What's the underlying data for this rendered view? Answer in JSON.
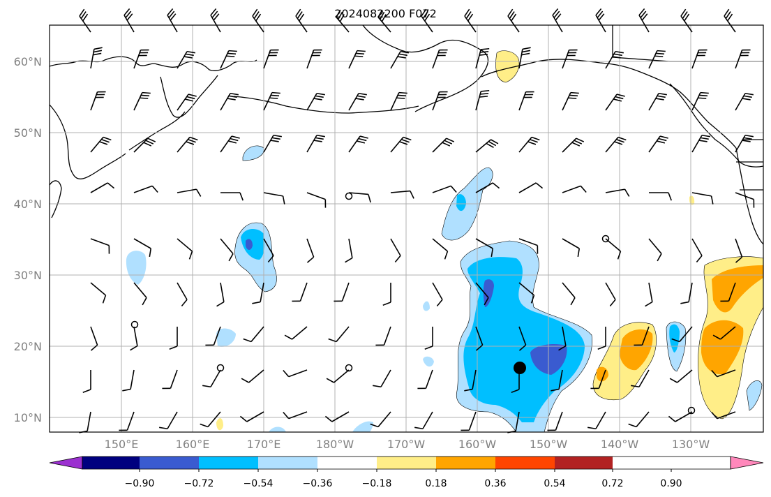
{
  "title": "2024082200 F072",
  "map": {
    "lat_labels": [
      "60°N",
      "50°N",
      "40°N",
      "30°N",
      "20°N",
      "10°N"
    ],
    "lon_labels": [
      "150°E",
      "160°E",
      "170°E",
      "180°W",
      "170°W",
      "160°W",
      "150°W",
      "140°W",
      "130°W"
    ],
    "grid": true
  },
  "colorbar": {
    "labels": [
      "−0.90",
      "−0.72",
      "−0.54",
      "−0.36",
      "−0.18",
      "0.18",
      "0.36",
      "0.54",
      "0.72",
      "0.90"
    ],
    "colors": [
      "#9b30d0",
      "#00007f",
      "#3a5bd0",
      "#00bfff",
      "#b0e0ff",
      "#ffffff",
      "#ffee88",
      "#ffa500",
      "#ff4500",
      "#b22222",
      "#ff88bb"
    ]
  },
  "colors": {
    "land_outline": "#000000",
    "grid": "#b0b0b0",
    "light_blue": "#b0e0ff",
    "mid_blue": "#00bfff",
    "dark_blue": "#3a5bd0",
    "light_yellow": "#ffee88",
    "orange": "#ffa500"
  }
}
